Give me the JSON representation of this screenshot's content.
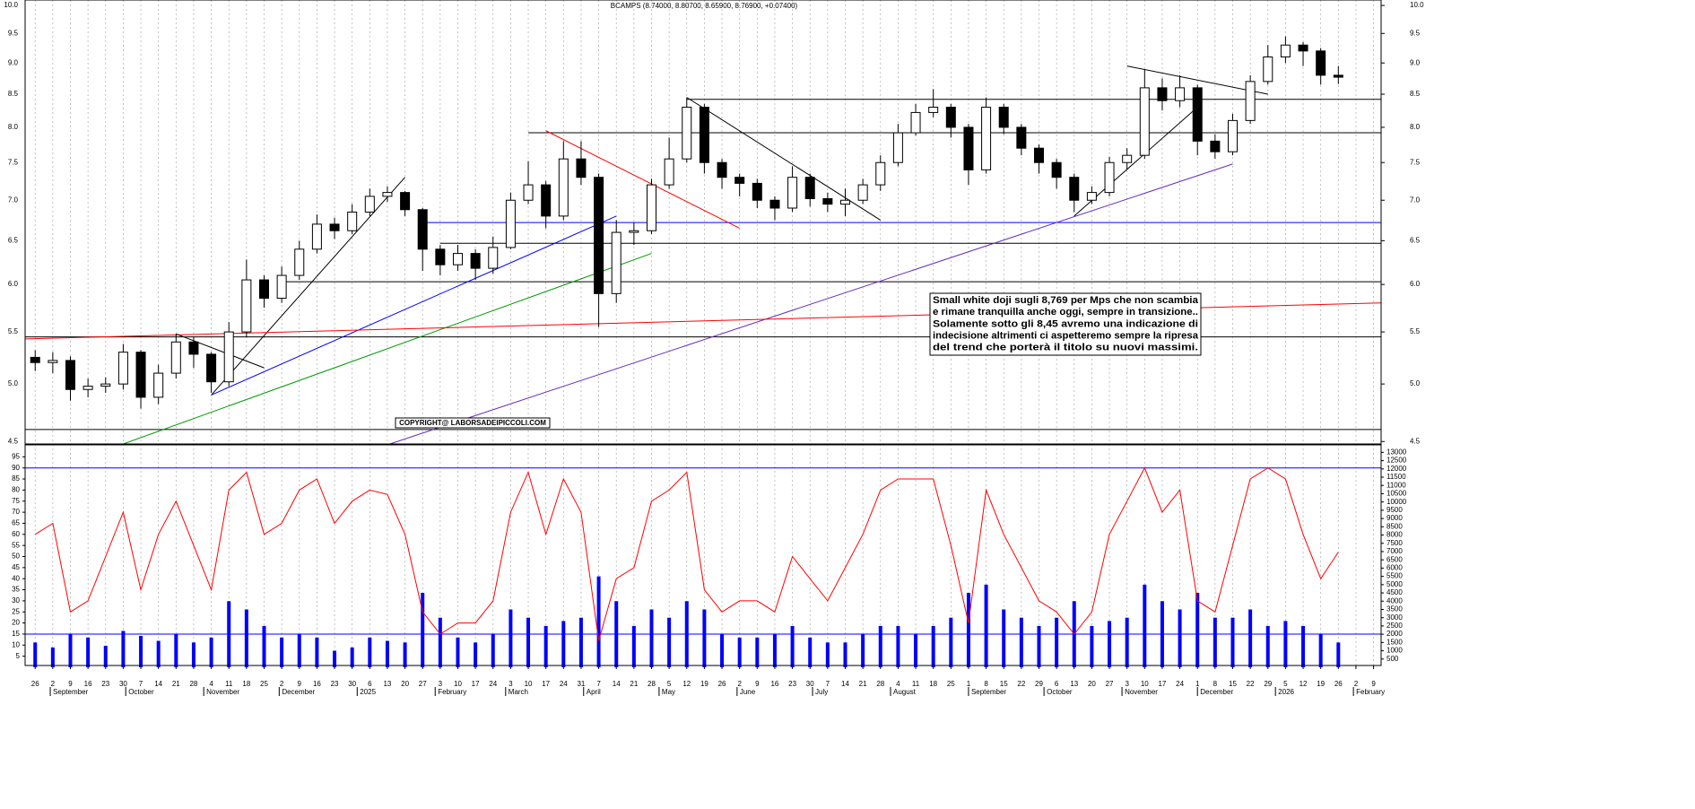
{
  "chart_data": {
    "type": "candlestick",
    "title": "BCAMPS (8.74000, 8.80700, 8.65900, 8.76900, +0.07400)",
    "log_scale": true,
    "grid": true,
    "ylim": [
      4.48,
      10.1
    ],
    "yticks": [
      4.5,
      {
        "value": 5,
        "label": "5.0"
      },
      5.5,
      {
        "value": 6,
        "label": "6.0"
      },
      6.5,
      {
        "value": 7,
        "label": "7.0"
      },
      7.5,
      {
        "value": 8,
        "label": "8.0"
      },
      8.5,
      {
        "value": 9,
        "label": "9.0"
      },
      9.5,
      {
        "value": 10,
        "label": "10.0"
      }
    ],
    "xlim": [
      "2024-08-22",
      "2026-02-12"
    ],
    "xticks": [
      {
        "value": "2024-08-26",
        "label": "26"
      },
      {
        "value": "2024-09-02",
        "label": "2"
      },
      {
        "value": "2024-09-09",
        "label": "9"
      },
      {
        "value": "2024-09-16",
        "label": "16"
      },
      {
        "value": "2024-09-23",
        "label": "23"
      },
      {
        "value": "2024-09-30",
        "label": "30"
      },
      {
        "value": "2024-10-07",
        "label": "7"
      },
      {
        "value": "2024-10-14",
        "label": "14"
      },
      {
        "value": "2024-10-21",
        "label": "21"
      },
      {
        "value": "2024-10-28",
        "label": "28"
      },
      {
        "value": "2024-11-04",
        "label": "4"
      },
      {
        "value": "2024-11-11",
        "label": "11"
      },
      {
        "value": "2024-11-18",
        "label": "18"
      },
      {
        "value": "2024-11-25",
        "label": "25"
      },
      {
        "value": "2024-12-02",
        "label": "2"
      },
      {
        "value": "2024-12-09",
        "label": "9"
      },
      {
        "value": "2024-12-16",
        "label": "16"
      },
      {
        "value": "2024-12-23",
        "label": "23"
      },
      {
        "value": "2024-12-30",
        "label": "30"
      },
      {
        "value": "2025-01-06",
        "label": "6"
      },
      {
        "value": "2025-01-13",
        "label": "13"
      },
      {
        "value": "2025-01-20",
        "label": "20"
      },
      {
        "value": "2025-01-27",
        "label": "27"
      },
      {
        "value": "2025-02-03",
        "label": "3"
      },
      {
        "value": "2025-02-10",
        "label": "10"
      },
      {
        "value": "2025-02-17",
        "label": "17"
      },
      {
        "value": "2025-02-24",
        "label": "24"
      },
      {
        "value": "2025-03-03",
        "label": "3"
      },
      {
        "value": "2025-03-10",
        "label": "10"
      },
      {
        "value": "2025-03-17",
        "label": "17"
      },
      {
        "value": "2025-03-24",
        "label": "24"
      },
      {
        "value": "2025-03-31",
        "label": "31"
      },
      {
        "value": "2025-04-07",
        "label": "7"
      },
      {
        "value": "2025-04-14",
        "label": "14"
      },
      {
        "value": "2025-04-21",
        "label": "21"
      },
      {
        "value": "2025-04-28",
        "label": "28"
      },
      {
        "value": "2025-05-05",
        "label": "5"
      },
      {
        "value": "2025-05-12",
        "label": "12"
      },
      {
        "value": "2025-05-19",
        "label": "19"
      },
      {
        "value": "2025-05-26",
        "label": "26"
      },
      {
        "value": "2025-06-02",
        "label": "2"
      },
      {
        "value": "2025-06-09",
        "label": "9"
      },
      {
        "value": "2025-06-16",
        "label": "16"
      },
      {
        "value": "2025-06-23",
        "label": "23"
      },
      {
        "value": "2025-06-30",
        "label": "30"
      },
      {
        "value": "2025-07-07",
        "label": "7"
      },
      {
        "value": "2025-07-14",
        "label": "14"
      },
      {
        "value": "2025-07-21",
        "label": "21"
      },
      {
        "value": "2025-07-28",
        "label": "28"
      },
      {
        "value": "2025-08-04",
        "label": "4"
      },
      {
        "value": "2025-08-11",
        "label": "11"
      },
      {
        "value": "2025-08-18",
        "label": "18"
      },
      {
        "value": "2025-08-25",
        "label": "25"
      },
      {
        "value": "2025-09-01",
        "label": "1"
      },
      {
        "value": "2025-09-08",
        "label": "8"
      },
      {
        "value": "2025-09-15",
        "label": "15"
      },
      {
        "value": "2025-09-22",
        "label": "22"
      },
      {
        "value": "2025-09-29",
        "label": "29"
      },
      {
        "value": "2025-10-06",
        "label": "6"
      },
      {
        "value": "2025-10-13",
        "label": "13"
      },
      {
        "value": "2025-10-20",
        "label": "20"
      },
      {
        "value": "2025-10-27",
        "label": "27"
      },
      {
        "value": "2025-11-03",
        "label": "3"
      },
      {
        "value": "2025-11-10",
        "label": "10"
      },
      {
        "value": "2025-11-17",
        "label": "17"
      },
      {
        "value": "2025-11-24",
        "label": "24"
      },
      {
        "value": "2025-12-01",
        "label": "1"
      },
      {
        "value": "2025-12-08",
        "label": "8"
      },
      {
        "value": "2025-12-15",
        "label": "15"
      },
      {
        "value": "2025-12-22",
        "label": "22"
      },
      {
        "value": "2025-12-29",
        "label": "29"
      },
      {
        "value": "2026-01-05",
        "label": "5"
      },
      {
        "value": "2026-01-12",
        "label": "12"
      },
      {
        "value": "2026-01-19",
        "label": "19"
      },
      {
        "value": "2026-01-26",
        "label": "26"
      },
      {
        "value": "2026-02-02",
        "label": "2"
      },
      {
        "value": "2026-02-09",
        "label": "9"
      }
    ],
    "month_labels": [
      {
        "value": "2024-09-01",
        "label": "September"
      },
      {
        "value": "2024-10-01",
        "label": "October"
      },
      {
        "value": "2024-11-01",
        "label": "November"
      },
      {
        "value": "2024-12-01",
        "label": "December"
      },
      {
        "value": "2025-01-01",
        "label": "2025"
      },
      {
        "value": "2025-02-01",
        "label": "February"
      },
      {
        "value": "2025-03-01",
        "label": "March"
      },
      {
        "value": "2025-04-01",
        "label": "April"
      },
      {
        "value": "2025-05-01",
        "label": "May"
      },
      {
        "value": "2025-06-01",
        "label": "June"
      },
      {
        "value": "2025-07-01",
        "label": "July"
      },
      {
        "value": "2025-08-01",
        "label": "August"
      },
      {
        "value": "2025-09-01",
        "label": "September"
      },
      {
        "value": "2025-10-01",
        "label": "October"
      },
      {
        "value": "2025-11-01",
        "label": "November"
      },
      {
        "value": "2025-12-01",
        "label": "December"
      },
      {
        "value": "2026-01-01",
        "label": "2026"
      },
      {
        "value": "2026-02-01",
        "label": "February"
      }
    ],
    "candles": {
      "x": [
        "2024-08-26",
        "2024-09-02",
        "2024-09-09",
        "2024-09-16",
        "2024-09-23",
        "2024-09-30",
        "2024-10-07",
        "2024-10-14",
        "2024-10-21",
        "2024-10-28",
        "2024-11-04",
        "2024-11-11",
        "2024-11-18",
        "2024-11-25",
        "2024-12-02",
        "2024-12-09",
        "2024-12-16",
        "2024-12-23",
        "2024-12-30",
        "2025-01-06",
        "2025-01-13",
        "2025-01-20",
        "2025-01-27",
        "2025-02-03",
        "2025-02-10",
        "2025-02-17",
        "2025-02-24",
        "2025-03-03",
        "2025-03-10",
        "2025-03-17",
        "2025-03-24",
        "2025-03-31",
        "2025-04-07",
        "2025-04-14",
        "2025-04-21",
        "2025-04-28",
        "2025-05-05",
        "2025-05-12",
        "2025-05-19",
        "2025-05-26",
        "2025-06-02",
        "2025-06-09",
        "2025-06-16",
        "2025-06-23",
        "2025-06-30",
        "2025-07-07",
        "2025-07-14",
        "2025-07-21",
        "2025-07-28",
        "2025-08-04",
        "2025-08-11",
        "2025-08-18",
        "2025-08-25",
        "2025-09-01",
        "2025-09-08",
        "2025-09-15",
        "2025-09-22",
        "2025-09-29",
        "2025-10-06",
        "2025-10-13",
        "2025-10-20",
        "2025-10-27",
        "2025-11-03",
        "2025-11-10",
        "2025-11-17",
        "2025-11-24",
        "2025-12-01",
        "2025-12-08",
        "2025-12-15",
        "2025-12-22",
        "2025-12-29",
        "2026-01-05",
        "2026-01-12",
        "2026-01-19",
        "2026-01-26"
      ],
      "open": [
        5.25,
        5.2,
        5.22,
        4.95,
        4.98,
        5.0,
        5.3,
        4.88,
        5.1,
        5.4,
        5.28,
        5.02,
        5.5,
        6.05,
        5.85,
        6.1,
        6.4,
        6.7,
        6.62,
        6.85,
        7.05,
        7.1,
        6.88,
        6.4,
        6.22,
        6.35,
        6.18,
        6.42,
        7.0,
        7.2,
        6.8,
        7.55,
        7.3,
        5.9,
        6.6,
        6.62,
        7.2,
        7.55,
        8.3,
        7.5,
        7.3,
        7.22,
        7.0,
        6.9,
        7.3,
        7.02,
        6.95,
        7.0,
        7.2,
        7.5,
        7.92,
        8.22,
        8.3,
        8.0,
        7.4,
        8.3,
        8.0,
        7.7,
        7.5,
        7.3,
        7.0,
        7.1,
        7.5,
        7.6,
        8.6,
        8.4,
        8.6,
        7.8,
        7.65,
        8.1,
        8.7,
        9.1,
        9.3,
        9.2,
        8.8
      ],
      "high": [
        5.32,
        5.3,
        5.26,
        5.05,
        5.06,
        5.38,
        5.32,
        5.18,
        5.48,
        5.45,
        5.3,
        5.6,
        6.28,
        6.1,
        6.2,
        6.5,
        6.82,
        6.78,
        6.95,
        7.15,
        7.18,
        7.12,
        6.9,
        6.45,
        6.45,
        6.4,
        6.55,
        7.1,
        7.52,
        7.25,
        7.8,
        7.8,
        7.35,
        6.75,
        6.72,
        7.28,
        7.85,
        8.45,
        8.35,
        7.55,
        7.35,
        7.28,
        7.05,
        7.45,
        7.35,
        7.1,
        7.15,
        7.28,
        7.6,
        8.05,
        8.35,
        8.58,
        8.35,
        8.05,
        8.45,
        8.35,
        8.05,
        7.75,
        7.55,
        7.35,
        7.18,
        7.58,
        7.7,
        8.9,
        8.75,
        8.8,
        8.65,
        7.9,
        8.2,
        8.8,
        9.3,
        9.45,
        9.35,
        9.25,
        8.95
      ],
      "low": [
        5.12,
        5.1,
        4.85,
        4.88,
        4.92,
        4.95,
        4.78,
        4.82,
        5.05,
        5.15,
        4.92,
        4.98,
        5.45,
        5.75,
        5.8,
        6.05,
        6.35,
        6.52,
        6.58,
        6.8,
        6.98,
        6.8,
        6.15,
        6.1,
        6.15,
        6.05,
        6.12,
        6.4,
        6.95,
        6.65,
        6.75,
        7.2,
        5.55,
        5.8,
        6.45,
        6.58,
        7.15,
        7.5,
        7.35,
        7.15,
        7.05,
        6.9,
        6.75,
        6.85,
        6.92,
        6.85,
        6.8,
        6.95,
        7.12,
        7.45,
        7.88,
        8.15,
        7.85,
        7.2,
        7.35,
        7.9,
        7.6,
        7.35,
        7.15,
        6.85,
        6.95,
        7.05,
        7.4,
        7.55,
        8.25,
        8.3,
        7.6,
        7.55,
        7.6,
        8.05,
        8.65,
        9.0,
        8.95,
        8.65,
        8.659
      ],
      "close": [
        5.2,
        5.22,
        4.95,
        4.98,
        5.0,
        5.3,
        4.88,
        5.1,
        5.4,
        5.28,
        5.02,
        5.5,
        6.05,
        5.85,
        6.1,
        6.4,
        6.7,
        6.62,
        6.85,
        7.05,
        7.1,
        6.88,
        6.4,
        6.22,
        6.35,
        6.18,
        6.42,
        7.0,
        7.2,
        6.8,
        7.55,
        7.3,
        5.9,
        6.6,
        6.62,
        7.2,
        7.55,
        8.3,
        7.5,
        7.3,
        7.22,
        7.0,
        6.9,
        7.3,
        7.02,
        6.95,
        7.0,
        7.2,
        7.5,
        7.92,
        8.22,
        8.3,
        8.0,
        7.4,
        8.3,
        8.0,
        7.7,
        7.5,
        7.3,
        7.0,
        7.1,
        7.5,
        7.6,
        8.6,
        8.4,
        8.6,
        7.8,
        7.65,
        8.1,
        8.7,
        9.1,
        9.3,
        9.2,
        8.8,
        8.769
      ]
    },
    "levels": [
      {
        "value": 8.42,
        "from": "2025-05-12",
        "color": "#000000"
      },
      {
        "value": 7.92,
        "from": "2025-03-10",
        "color": "#000000"
      },
      {
        "value": 6.72,
        "from": "2025-01-27",
        "color": "#0000ff"
      },
      {
        "value": 6.47,
        "from": "2025-02-03",
        "color": "#000000"
      },
      {
        "value": 6.03,
        "from": "2024-12-02",
        "color": "#000000"
      },
      {
        "value": 5.45,
        "from": "2024-08-22",
        "color": "#000000"
      },
      {
        "value": 4.6,
        "from": "2024-08-22",
        "color": "#000000"
      }
    ],
    "trendlines": [
      {
        "from": [
          "2024-11-04",
          4.9
        ],
        "to": [
          "2025-01-20",
          7.3
        ],
        "color": "#000000"
      },
      {
        "from": [
          "2024-11-04",
          4.9
        ],
        "to": [
          "2025-04-14",
          6.8
        ],
        "color": "#0000ff"
      },
      {
        "from": [
          "2024-09-30",
          4.48
        ],
        "to": [
          "2025-04-28",
          6.35
        ],
        "color": "#009900"
      },
      {
        "from": [
          "2025-01-14",
          4.48
        ],
        "to": [
          "2025-12-15",
          7.48
        ],
        "color": "#6a2bb8"
      },
      {
        "from": [
          "2024-08-22",
          5.43
        ],
        "to": [
          "2026-02-12",
          5.8
        ],
        "color": "#ff0000"
      },
      {
        "from": [
          "2025-03-17",
          7.95
        ],
        "to": [
          "2025-06-02",
          6.65
        ],
        "color": "#ff0000"
      },
      {
        "from": [
          "2025-05-12",
          8.45
        ],
        "to": [
          "2025-07-28",
          6.75
        ],
        "color": "#000000"
      },
      {
        "from": [
          "2024-10-21",
          5.48
        ],
        "to": [
          "2024-11-25",
          5.15
        ],
        "color": "#000000"
      },
      {
        "from": [
          "2025-10-13",
          6.8
        ],
        "to": [
          "2025-12-01",
          8.3
        ],
        "color": "#000000"
      },
      {
        "from": [
          "2025-11-03",
          8.95
        ],
        "to": [
          "2025-12-29",
          8.5
        ],
        "color": "#000000"
      }
    ],
    "rsi": {
      "color": "#ff0000",
      "ylim": [
        0,
        100
      ],
      "yticks": [
        5,
        10,
        15,
        20,
        25,
        30,
        35,
        40,
        45,
        50,
        55,
        60,
        65,
        70,
        75,
        80,
        85,
        90,
        95
      ],
      "levels": [
        15,
        90
      ],
      "level_color": "#0000ff",
      "values": [
        60,
        65,
        25,
        30,
        50,
        70,
        35,
        60,
        75,
        55,
        35,
        80,
        88,
        60,
        65,
        80,
        85,
        65,
        75,
        80,
        78,
        60,
        25,
        15,
        20,
        20,
        30,
        70,
        88,
        60,
        85,
        70,
        12,
        40,
        45,
        75,
        80,
        88,
        35,
        25,
        30,
        30,
        25,
        50,
        40,
        30,
        45,
        60,
        80,
        85,
        85,
        85,
        55,
        20,
        80,
        60,
        45,
        30,
        25,
        15,
        25,
        60,
        75,
        90,
        70,
        80,
        30,
        25,
        55,
        85,
        90,
        85,
        60,
        40,
        52
      ]
    },
    "volume": {
      "color": "#0000ff",
      "axis": "y2",
      "values": [
        1500,
        1200,
        2000,
        1800,
        1300,
        2200,
        1900,
        1600,
        2000,
        1500,
        1800,
        4000,
        3500,
        2500,
        1800,
        2000,
        1800,
        1000,
        1200,
        1800,
        1600,
        1500,
        4500,
        3000,
        1800,
        1500,
        2000,
        3500,
        3000,
        2500,
        2800,
        3000,
        5500,
        4000,
        2500,
        3500,
        3000,
        4000,
        3500,
        2000,
        1800,
        1800,
        2000,
        2500,
        1800,
        1500,
        1500,
        2000,
        2500,
        2500,
        2000,
        2500,
        3000,
        4500,
        5000,
        3500,
        3000,
        2500,
        3000,
        4000,
        2500,
        2800,
        3000,
        5000,
        4000,
        3500,
        4500,
        3000,
        3000,
        3500,
        2500,
        2800,
        2500,
        2000,
        1500
      ]
    },
    "y2lim": [
      0,
      13400
    ],
    "y2ticks": [
      500,
      1000,
      1500,
      2000,
      2500,
      3000,
      3500,
      4000,
      4500,
      5000,
      5500,
      6000,
      6500,
      7000,
      7500,
      8000,
      8500,
      9000,
      9500,
      10000,
      10500,
      11000,
      11500,
      12000,
      12500,
      13000
    ],
    "annotation": [
      "Small white doji sugli 8,769  per Mps  che non scambia",
      "e rimane tranquilla anche oggi, sempre in transizione..",
      "Solamente sotto gli 8,45 avremo una indicazione di",
      "indecisione altrimenti ci aspetteremo sempre la ripresa",
      "del trend che porterà il titolo su nuovi massimi."
    ],
    "copyright": "COPYRIGHT@ LABORSADEIPICCOLI.COM"
  }
}
